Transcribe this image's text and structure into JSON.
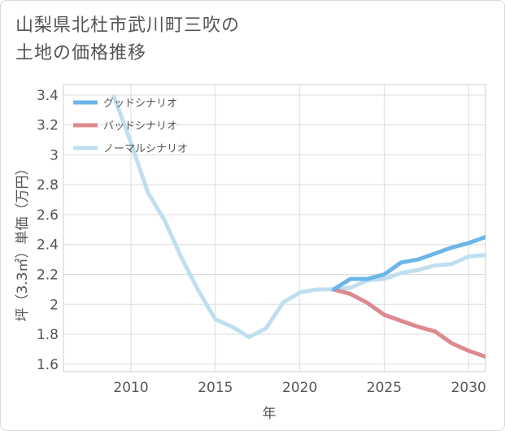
{
  "chart_data": {
    "type": "line",
    "title": "山梨県北杜市武川町三吹の\n土地の価格推移",
    "xlabel": "年",
    "ylabel": "坪（3.3㎡）単価（万円）",
    "xlim": [
      2006,
      2031
    ],
    "ylim": [
      1.55,
      3.47
    ],
    "x_ticks": [
      2010,
      2015,
      2020,
      2025,
      2030
    ],
    "y_ticks": [
      1.6,
      1.8,
      2,
      2.2,
      2.4,
      2.6,
      2.8,
      3,
      3.2,
      3.4
    ],
    "grid": true,
    "legend_position": "top-left",
    "series": [
      {
        "name": "グッドシナリオ",
        "color": "#6cb6ea",
        "x": [
          2022,
          2023,
          2024,
          2025,
          2026,
          2027,
          2028,
          2029,
          2030,
          2031
        ],
        "values": [
          2.1,
          2.17,
          2.17,
          2.2,
          2.28,
          2.3,
          2.34,
          2.38,
          2.41,
          2.45
        ]
      },
      {
        "name": "バッドシナリオ",
        "color": "#dc8a90",
        "x": [
          2022,
          2023,
          2024,
          2025,
          2026,
          2027,
          2028,
          2029,
          2030,
          2031
        ],
        "values": [
          2.1,
          2.07,
          2.01,
          1.93,
          1.89,
          1.85,
          1.82,
          1.74,
          1.69,
          1.65
        ]
      },
      {
        "name": "ノーマルシナリオ",
        "color": "#bfdff0",
        "x": [
          2009,
          2010,
          2011,
          2012,
          2013,
          2014,
          2015,
          2016,
          2017,
          2018,
          2019,
          2020,
          2021,
          2022,
          2023,
          2024,
          2025,
          2026,
          2027,
          2028,
          2029,
          2030,
          2031
        ],
        "values": [
          3.39,
          3.08,
          2.75,
          2.56,
          2.31,
          2.09,
          1.9,
          1.85,
          1.78,
          1.84,
          2.01,
          2.08,
          2.1,
          2.1,
          2.11,
          2.16,
          2.17,
          2.21,
          2.23,
          2.26,
          2.27,
          2.32,
          2.33
        ]
      }
    ]
  }
}
